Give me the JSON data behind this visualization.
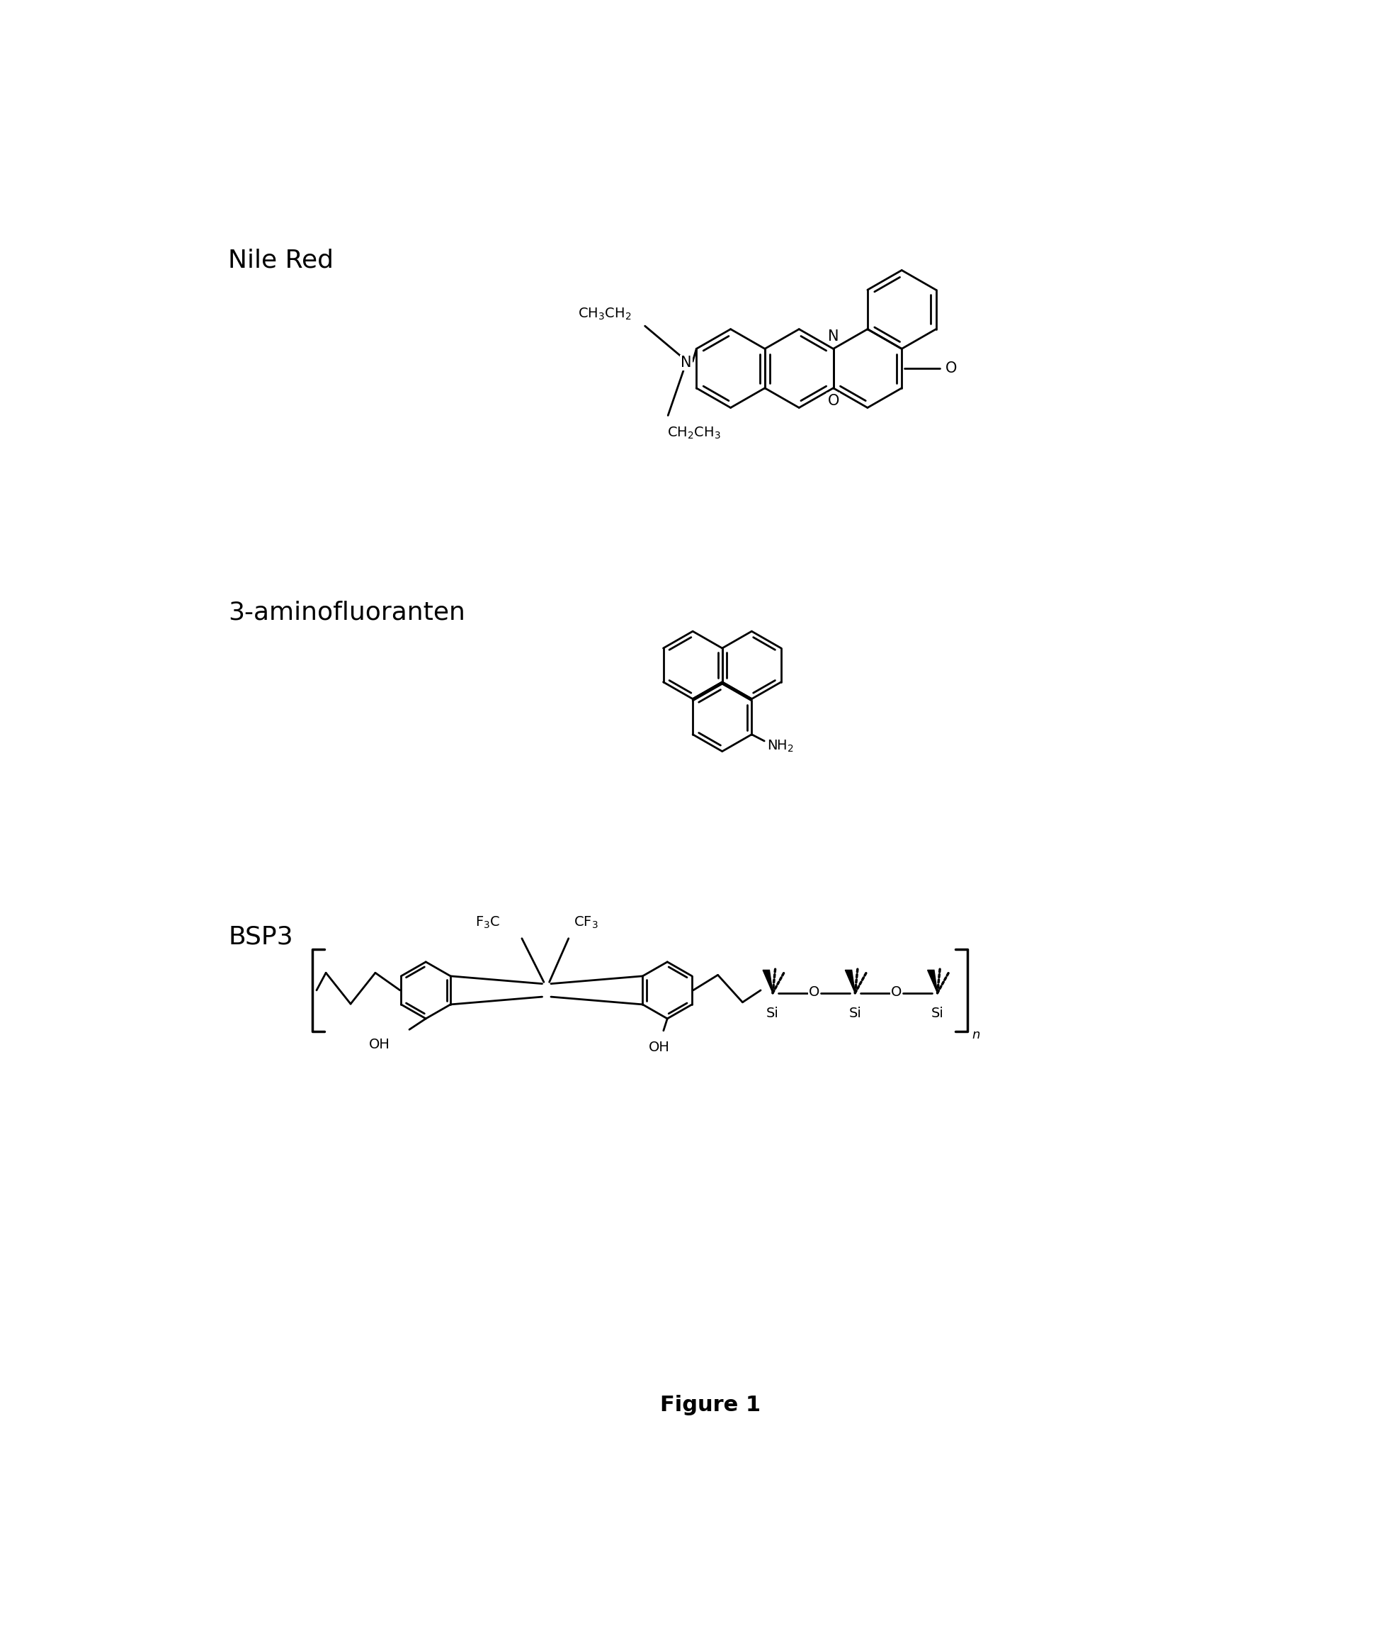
{
  "bg_color": "#ffffff",
  "text_color": "#000000",
  "labels": {
    "nile_red": "Nile Red",
    "aminofluoranten": "3-aminofluoranten",
    "bsp3": "BSP3",
    "figure": "Figure 1"
  },
  "lw": 2.0
}
